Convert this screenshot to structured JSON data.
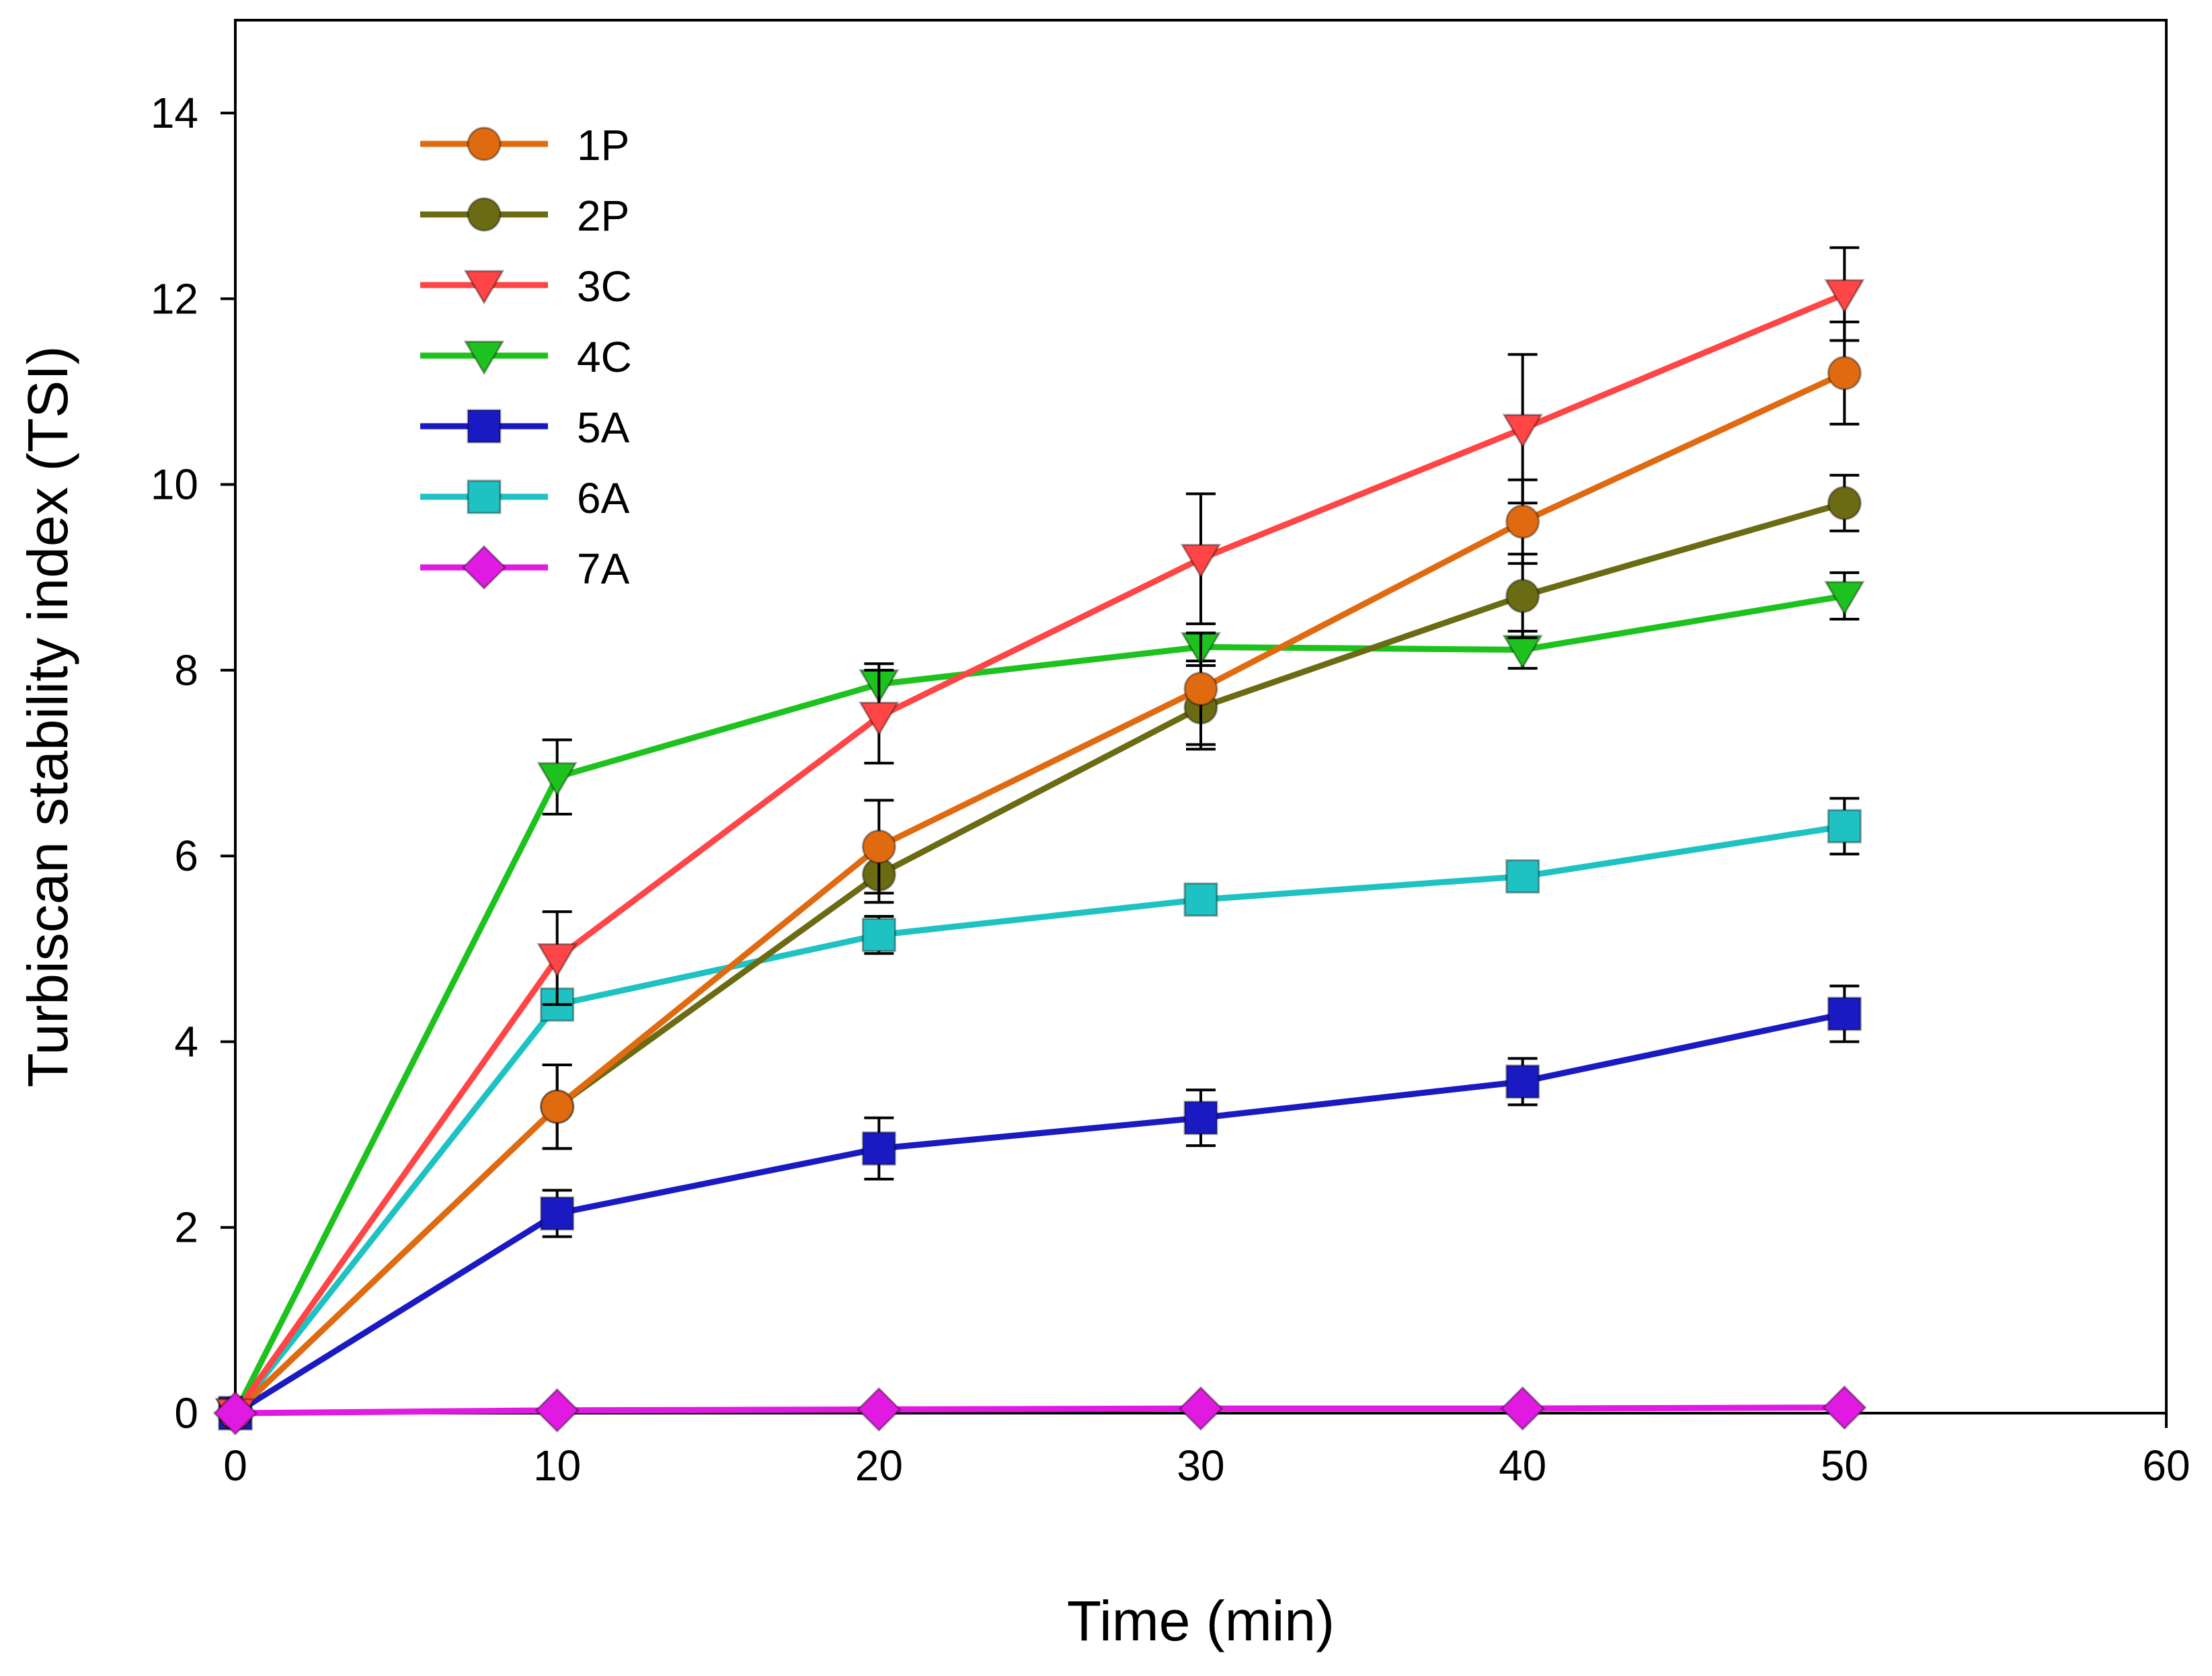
{
  "chart_data": {
    "type": "line",
    "title": "",
    "xlabel": "Time (min)",
    "ylabel": "Turbiscan stability index (TSI)",
    "xlim": [
      0,
      60
    ],
    "ylim": [
      0,
      15
    ],
    "xticks": [
      0,
      10,
      20,
      30,
      40,
      50,
      60
    ],
    "yticks": [
      0,
      2,
      4,
      6,
      8,
      10,
      12,
      14
    ],
    "xtick_labels": [
      "0",
      "10",
      "20",
      "30",
      "40",
      "50",
      "60"
    ],
    "ytick_labels": [
      "0",
      "2",
      "4",
      "6",
      "8",
      "10",
      "12",
      "14"
    ],
    "grid": false,
    "legend_position": "top-left",
    "x": [
      0,
      10,
      20,
      30,
      40,
      50
    ],
    "series": [
      {
        "name": "1P",
        "color": "#E06A10",
        "marker": "circle",
        "values": [
          0,
          3.3,
          6.1,
          7.8,
          9.6,
          11.2
        ],
        "errors": [
          0,
          0.45,
          0.5,
          0.6,
          0.45,
          0.55
        ]
      },
      {
        "name": "2P",
        "color": "#6B6B14",
        "marker": "circle",
        "values": [
          0,
          3.3,
          5.8,
          7.6,
          8.8,
          9.8
        ],
        "errors": [
          0,
          0.45,
          0.3,
          0.45,
          0.45,
          0.3
        ]
      },
      {
        "name": "3C",
        "color": "#FF4545",
        "marker": "triangle-down",
        "values": [
          0,
          4.9,
          7.5,
          9.2,
          10.6,
          12.05
        ],
        "errors": [
          0,
          0.5,
          0.5,
          0.7,
          0.8,
          0.5
        ]
      },
      {
        "name": "4C",
        "color": "#1EC21E",
        "marker": "triangle-down",
        "values": [
          0,
          6.85,
          7.85,
          8.25,
          8.22,
          8.8
        ],
        "errors": [
          0,
          0.4,
          0.22,
          0.15,
          0.2,
          0.25
        ]
      },
      {
        "name": "5A",
        "color": "#1A1AC2",
        "marker": "square",
        "values": [
          0,
          2.15,
          2.85,
          3.18,
          3.57,
          4.3
        ],
        "errors": [
          0,
          0.25,
          0.33,
          0.3,
          0.25,
          0.3
        ]
      },
      {
        "name": "6A",
        "color": "#1EC2C2",
        "marker": "square",
        "values": [
          0,
          4.4,
          5.15,
          5.53,
          5.78,
          6.32
        ],
        "errors": [
          0,
          0.1,
          0.2,
          0.1,
          0.1,
          0.3
        ]
      },
      {
        "name": "7A",
        "color": "#E01AE0",
        "marker": "diamond",
        "values": [
          0,
          0.03,
          0.04,
          0.05,
          0.05,
          0.06
        ],
        "errors": [
          0,
          0,
          0,
          0,
          0,
          0
        ]
      }
    ]
  }
}
